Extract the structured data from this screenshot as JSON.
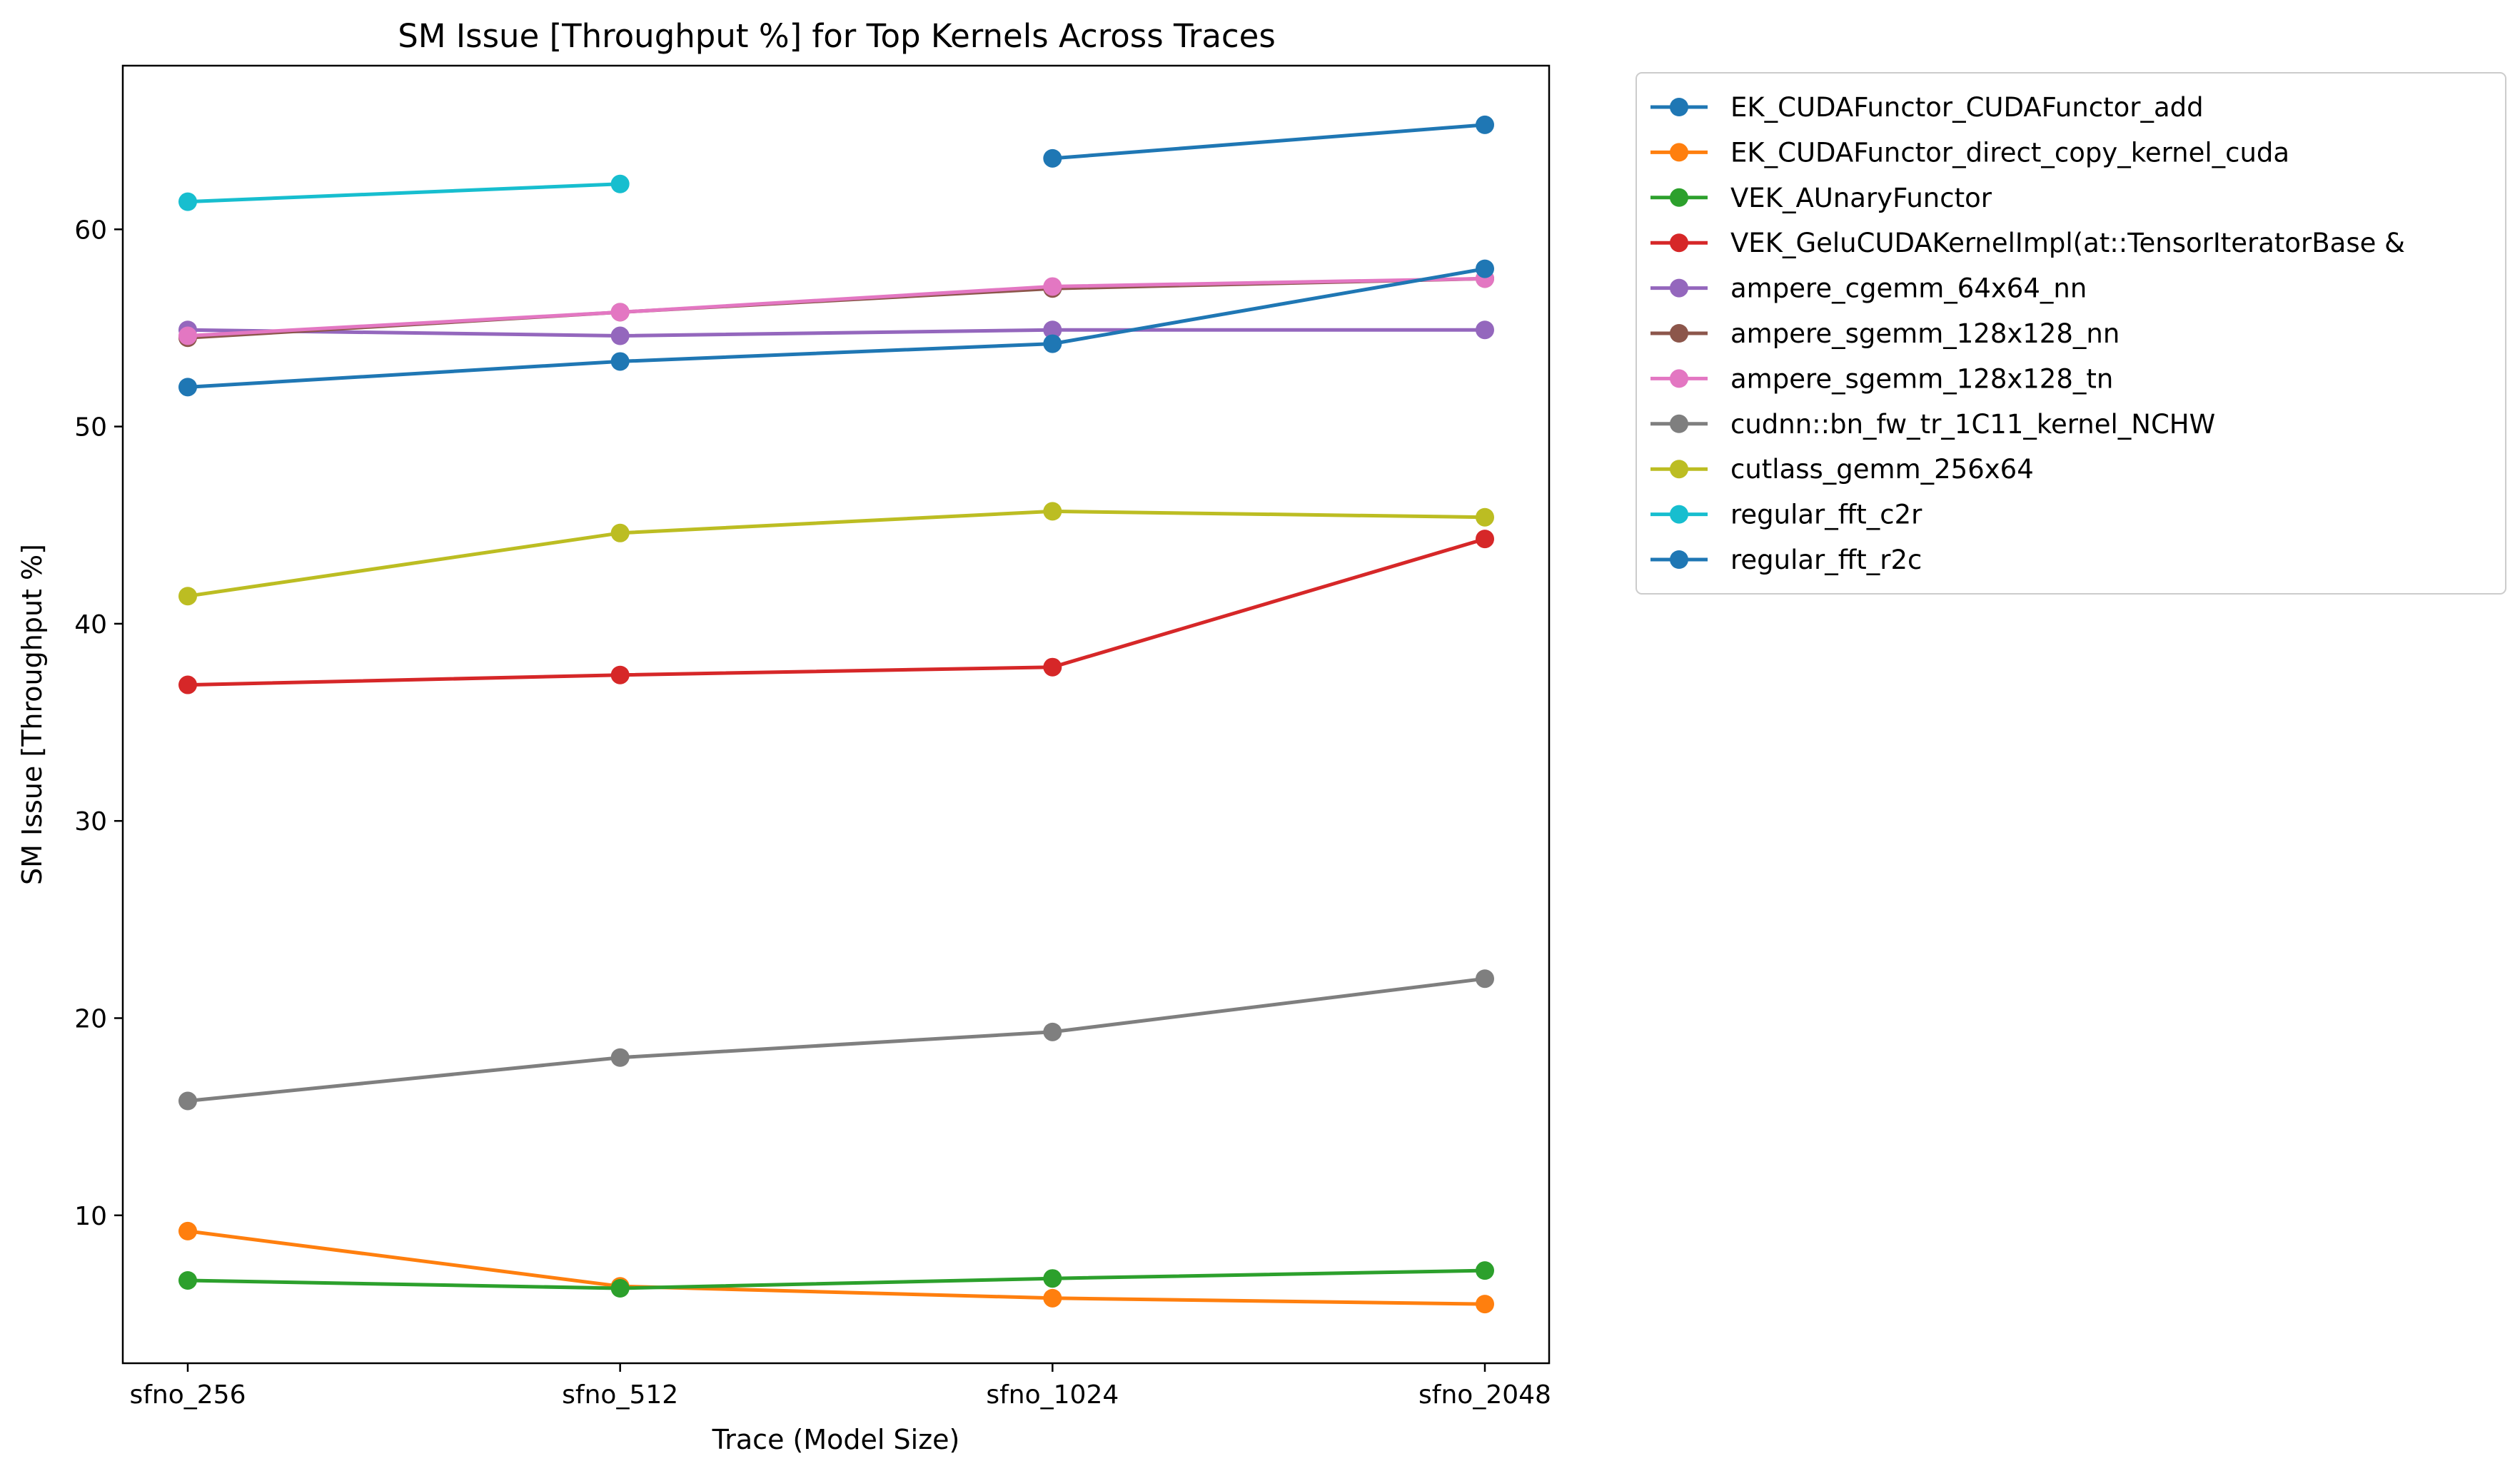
{
  "chart_data": {
    "type": "line",
    "title": "SM Issue [Throughput %] for Top Kernels Across Traces",
    "xlabel": "Trace (Model Size)",
    "ylabel": "SM Issue [Throughput %]",
    "categories": [
      "sfno_256",
      "sfno_512",
      "sfno_1024",
      "sfno_2048"
    ],
    "ylim": [
      2.5,
      68.3
    ],
    "yticks": [
      10,
      20,
      30,
      40,
      50,
      60
    ],
    "grid": false,
    "legend_position": "outside-upper-right",
    "series": [
      {
        "name": "EK_CUDAFunctor_CUDAFunctor_add",
        "color": "#1f77b4",
        "values": [
          null,
          null,
          63.6,
          65.3
        ]
      },
      {
        "name": "EK_CUDAFunctor_direct_copy_kernel_cuda",
        "color": "#ff7f0e",
        "values": [
          9.2,
          6.4,
          5.8,
          5.5
        ]
      },
      {
        "name": "VEK_AUnaryFunctor",
        "color": "#2ca02c",
        "values": [
          6.7,
          6.3,
          6.8,
          7.2
        ]
      },
      {
        "name": "VEK_GeluCUDAKernelImpl(at::TensorIteratorBase &",
        "color": "#d62728",
        "values": [
          36.9,
          37.4,
          37.8,
          44.3
        ]
      },
      {
        "name": "ampere_cgemm_64x64_nn",
        "color": "#9467bd",
        "values": [
          54.9,
          54.6,
          54.9,
          54.9
        ]
      },
      {
        "name": "ampere_sgemm_128x128_nn",
        "color": "#8c564b",
        "values": [
          54.5,
          55.8,
          57.0,
          57.5
        ]
      },
      {
        "name": "ampere_sgemm_128x128_tn",
        "color": "#e377c2",
        "values": [
          54.6,
          55.8,
          57.1,
          57.5
        ]
      },
      {
        "name": "cudnn::bn_fw_tr_1C11_kernel_NCHW",
        "color": "#7f7f7f",
        "values": [
          15.8,
          18.0,
          19.3,
          22.0
        ]
      },
      {
        "name": "cutlass_gemm_256x64",
        "color": "#bcbd22",
        "values": [
          41.4,
          44.6,
          45.7,
          45.4
        ]
      },
      {
        "name": "regular_fft_c2r",
        "color": "#17becf",
        "values": [
          61.4,
          62.3,
          null,
          null
        ]
      },
      {
        "name": "regular_fft_r2c",
        "color": "#1f77b4",
        "values": [
          52.0,
          53.3,
          54.2,
          58.0
        ]
      }
    ]
  }
}
